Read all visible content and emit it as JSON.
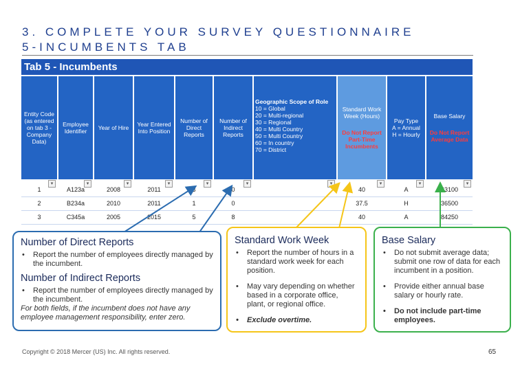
{
  "title": {
    "line1": "3. COMPLETE YOUR SURVEY QUESTIONNAIRE",
    "line2": "5-INCUMBENTS TAB"
  },
  "tab": {
    "name": "Tab 5 - Incumbents",
    "columns": [
      {
        "label": "Entity Code (as entered on tab 3 - Company Data)"
      },
      {
        "label": "Employee Identifier"
      },
      {
        "label": "Year of Hire"
      },
      {
        "label": "Year Entered Into Position"
      },
      {
        "label": "Number of Direct Reports"
      },
      {
        "label": "Number of Indirect Reports"
      },
      {
        "label": "Geographic Scope of Role",
        "codes": [
          "10 = Global",
          "20 = Multi-regional",
          "30 = Regional",
          "40 = Multi Country",
          "50 = Multi Country",
          "60 = In country",
          "70 = District"
        ]
      },
      {
        "label": "Standard Work Week (Hours)",
        "note": "Do Not Report Part-Time Incumbents"
      },
      {
        "label": "Pay Type",
        "codes": [
          "A = Annual",
          "H = Hourly"
        ]
      },
      {
        "label": "Base Salary",
        "note": "Do Not Report Average Data"
      }
    ],
    "rows": [
      [
        "1",
        "A123a",
        "2008",
        "2011",
        "3",
        "0",
        "",
        "40",
        "A",
        "63100"
      ],
      [
        "2",
        "B234a",
        "2010",
        "2011",
        "1",
        "0",
        "",
        "37.5",
        "H",
        "36500"
      ],
      [
        "3",
        "C345a",
        "2005",
        "2015",
        "5",
        "8",
        "",
        "40",
        "A",
        "84250"
      ]
    ]
  },
  "blue_box": {
    "h1": "Number of Direct Reports",
    "b1": "Report the number of employees directly managed by the incumbent.",
    "h2": "Number of Indirect Reports",
    "b2": "Report the number of employees directly managed by the incumbent.",
    "note": "For both fields, if the incumbent does not have any employee management responsibility, enter zero."
  },
  "yellow_box": {
    "h": "Standard Work Week",
    "b1": "Report the number of hours in a standard work week for each position.",
    "b2": "May vary depending on whether based in a corporate office, plant, or regional office.",
    "b3": "Exclude overtime."
  },
  "green_box": {
    "h": "Base Salary",
    "b1": "Do not submit average data; submit one row of data for each incumbent in a position.",
    "b2": "Provide either annual base salary or hourly rate.",
    "b3": "Do not include part-time employees."
  },
  "footer": {
    "copyright": "Copyright © 2018 Mercer (US) Inc. All rights reserved.",
    "page": "65"
  },
  "colors": {
    "header_blue": "#2364c4",
    "light_blue": "#5e9be0",
    "arrow_blue": "#2b6cb0",
    "arrow_yellow": "#f5c518",
    "arrow_green": "#3ab04b"
  }
}
